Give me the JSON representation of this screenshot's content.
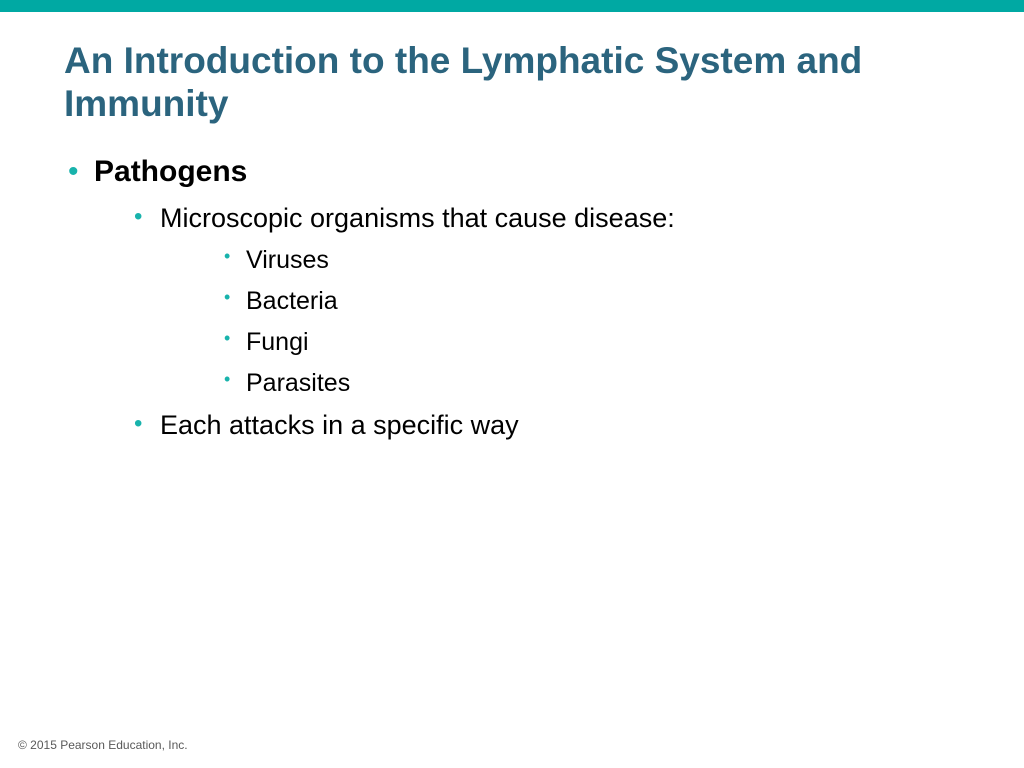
{
  "colors": {
    "top_bar": "#00a9a3",
    "title": "#2b647e",
    "bullet": "#18b3ac",
    "body_text": "#000000",
    "copyright_text": "#595959",
    "background": "#ffffff"
  },
  "typography": {
    "title_fontsize": 37,
    "l1_fontsize": 30,
    "l2_fontsize": 27,
    "l3_fontsize": 25,
    "copyright_fontsize": 12,
    "bullet_l1_fontsize": 30,
    "bullet_l2_fontsize": 24,
    "bullet_l3_fontsize": 18
  },
  "title": "An Introduction to the Lymphatic System and Immunity",
  "content": {
    "l1": {
      "text": "Pathogens",
      "l2a": {
        "text": "Microscopic organisms that cause disease:",
        "l3": [
          "Viruses",
          "Bacteria",
          "Fungi",
          "Parasites"
        ]
      },
      "l2b": {
        "text": "Each attacks in a specific way"
      }
    }
  },
  "copyright": "© 2015 Pearson Education, Inc."
}
